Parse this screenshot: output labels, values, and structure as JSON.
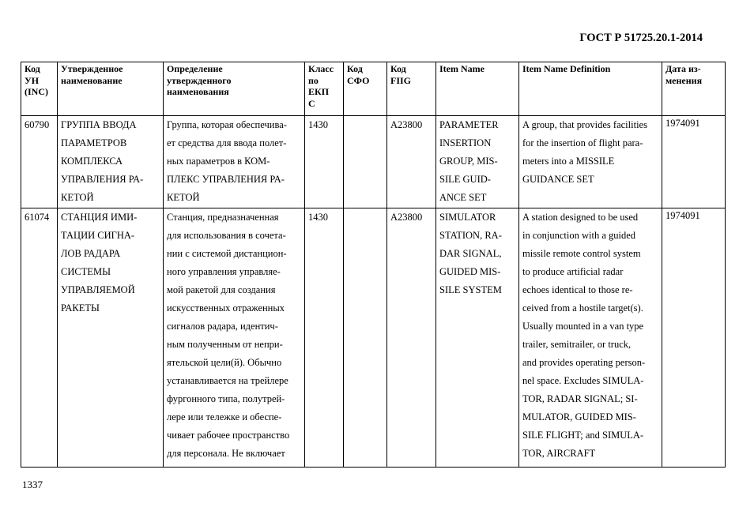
{
  "header": {
    "doc_code": "ГОСТ Р 51725.20.1-2014"
  },
  "table": {
    "columns": [
      [
        "Код",
        "УН",
        "(INC)"
      ],
      [
        "Утвержденное",
        "наименование"
      ],
      [
        "Определение",
        "утвержденного",
        "наименования"
      ],
      [
        "Класс",
        "по",
        "ЕКП",
        "С"
      ],
      [
        "Код",
        "СФО"
      ],
      [
        "Код",
        "FIIG"
      ],
      [
        "Item Name"
      ],
      [
        "Item Name Definition"
      ],
      [
        "Дата из-",
        "менения"
      ]
    ],
    "rows": [
      [
        [
          "60790"
        ],
        [
          "ГРУППА ВВОДА",
          "ПАРАМЕТРОВ",
          "КОМПЛЕКСА",
          "УПРАВЛЕНИЯ РА-",
          "КЕТОЙ"
        ],
        [
          "Группа, которая обеспечива-",
          "ет средства для ввода полет-",
          "ных параметров в КОМ-",
          "ПЛЕКС УПРАВЛЕНИЯ РА-",
          "КЕТОЙ"
        ],
        [
          "1430"
        ],
        [],
        [
          "A23800"
        ],
        [
          "PARAMETER",
          "INSERTION",
          "GROUP, MIS-",
          "SILE GUID-",
          "ANCE SET"
        ],
        [
          "A group, that provides facilities",
          "for the insertion of flight para-",
          "meters into a MISSILE",
          "GUIDANCE SET"
        ],
        [
          "1974091"
        ]
      ],
      [
        [
          "61074"
        ],
        [
          "СТАНЦИЯ ИМИ-",
          "ТАЦИИ СИГНА-",
          "ЛОВ РАДАРА",
          "СИСТЕМЫ",
          "УПРАВЛЯЕМОЙ",
          "РАКЕТЫ"
        ],
        [
          "Станция, предназначенная",
          "для использования в сочета-",
          "нии с системой дистанцион-",
          "ного управления управляе-",
          "мой ракетой для создания",
          "искусственных отраженных",
          "сигналов радара, идентич-",
          "ным полученным от непри-",
          "ятельской цели(й). Обычно",
          "устанавливается на трейлере",
          "фургонного типа, полутрей-",
          "лере или тележке и обеспе-",
          "чивает рабочее пространство",
          "для персонала. Не включает"
        ],
        [
          "1430"
        ],
        [],
        [
          "A23800"
        ],
        [
          "SIMULATOR",
          "STATION, RA-",
          "DAR SIGNAL,",
          "GUIDED MIS-",
          "SILE SYSTEM"
        ],
        [
          "A station designed to be used",
          "in conjunction with a guided",
          "missile remote control system",
          "to produce artificial radar",
          "echoes identical to those re-",
          "ceived from a hostile target(s).",
          "Usually mounted in a van type",
          "trailer, semitrailer, or truck,",
          "and provides operating person-",
          "nel space. Excludes SIMULA-",
          "TOR, RADAR SIGNAL; SI-",
          "MULATOR, GUIDED MIS-",
          "SILE FLIGHT; and SIMULA-",
          "TOR, AIRCRAFT"
        ],
        [
          "1974091"
        ]
      ]
    ]
  },
  "footer": {
    "page_number": "1337"
  }
}
